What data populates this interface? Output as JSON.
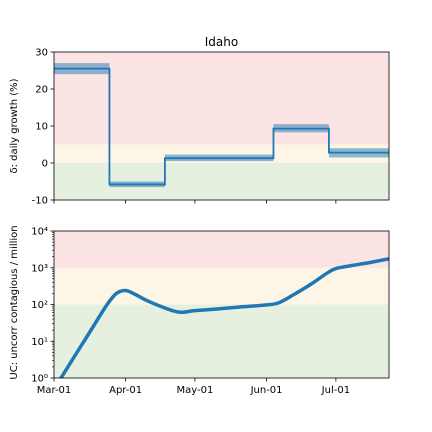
{
  "chart_data": [
    {
      "type": "line",
      "title": "Idaho",
      "ylabel": "δ: daily growth (%)",
      "ylim": [
        -10,
        30
      ],
      "yticks": [
        -10,
        0,
        10,
        20,
        30
      ],
      "bands": [
        {
          "from": -10,
          "to": 0,
          "color": "#e6f0e0"
        },
        {
          "from": 0,
          "to": 5,
          "color": "#fdf6e6"
        },
        {
          "from": 5,
          "to": 30,
          "color": "#fde4e4"
        }
      ],
      "segments": [
        {
          "start": "2020-03-01",
          "end": "2020-03-25",
          "value": 25.5,
          "low": 24.0,
          "high": 27.0
        },
        {
          "start": "2020-03-25",
          "end": "2020-04-18",
          "value": -5.8,
          "low": -6.5,
          "high": -5.0
        },
        {
          "start": "2020-04-18",
          "end": "2020-06-04",
          "value": 1.3,
          "low": 0.5,
          "high": 2.3
        },
        {
          "start": "2020-06-04",
          "end": "2020-06-28",
          "value": 9.3,
          "low": 8.3,
          "high": 10.5
        },
        {
          "start": "2020-06-28",
          "end": "2020-07-24",
          "value": 2.8,
          "low": 1.5,
          "high": 4.0
        }
      ],
      "color": "#1f77b4",
      "band_color": "#1f77b4"
    },
    {
      "type": "line",
      "ylabel": "UC: uncorr contagious / million",
      "yscale": "log",
      "ylim": [
        1,
        10000
      ],
      "yticks": [
        1,
        10,
        100,
        1000,
        10000
      ],
      "ytick_labels": [
        "10⁰",
        "10¹",
        "10²",
        "10³",
        "10⁴"
      ],
      "xticks": [
        "2020-03-01",
        "2020-04-01",
        "2020-05-01",
        "2020-06-01",
        "2020-07-01"
      ],
      "xtick_labels": [
        "Mar-01",
        "Apr-01",
        "May-01",
        "Jun-01",
        "Jul-01"
      ],
      "xlim": [
        "2020-03-01",
        "2020-07-24"
      ],
      "bands": [
        {
          "from": 1,
          "to": 100,
          "color": "#e6f0e0"
        },
        {
          "from": 100,
          "to": 1000,
          "color": "#fdf6e6"
        },
        {
          "from": 1000,
          "to": 10000,
          "color": "#fde4e4"
        }
      ],
      "x": [
        "2020-03-04",
        "2020-03-10",
        "2020-03-17",
        "2020-03-24",
        "2020-03-28",
        "2020-04-01",
        "2020-04-05",
        "2020-04-10",
        "2020-04-17",
        "2020-04-24",
        "2020-05-01",
        "2020-05-10",
        "2020-05-20",
        "2020-05-30",
        "2020-06-06",
        "2020-06-13",
        "2020-06-20",
        "2020-06-27",
        "2020-07-01",
        "2020-07-08",
        "2020-07-16",
        "2020-07-24"
      ],
      "y": [
        1,
        4,
        20,
        100,
        200,
        240,
        190,
        130,
        85,
        62,
        68,
        75,
        85,
        95,
        110,
        190,
        350,
        700,
        950,
        1150,
        1400,
        1750
      ],
      "color": "#1f77b4"
    }
  ]
}
